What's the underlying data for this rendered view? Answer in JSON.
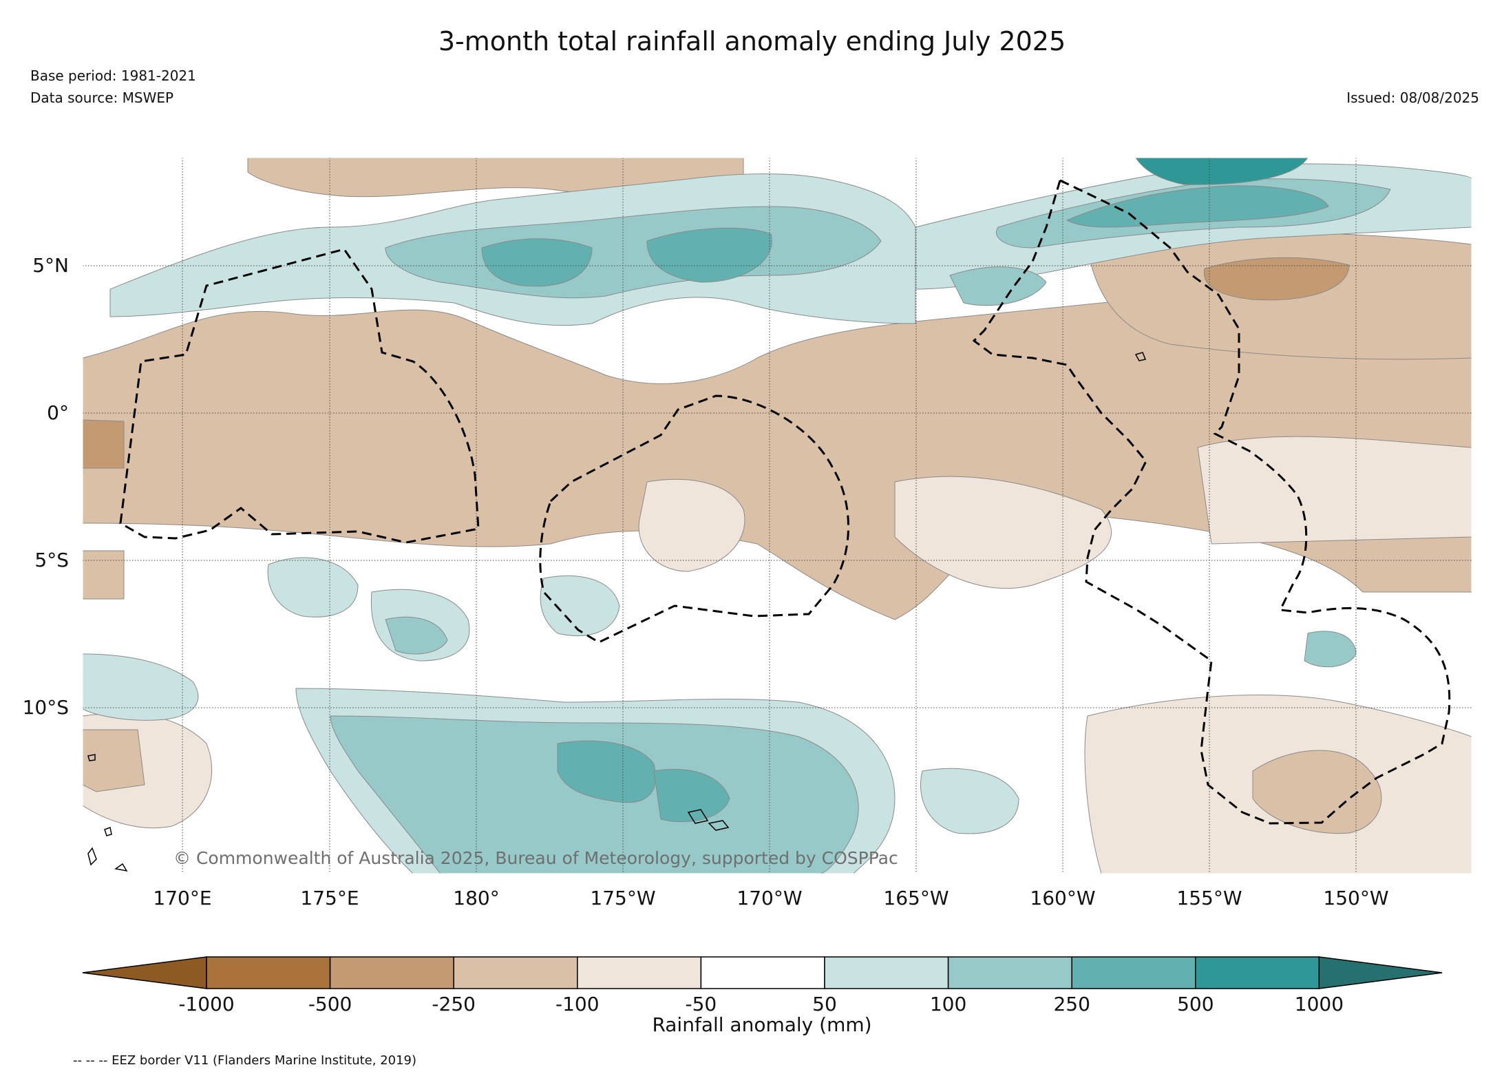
{
  "title": "3-month total rainfall anomaly ending July 2025",
  "base_period": "Base period: 1981-2021",
  "data_source": "Data source: MSWEP",
  "issued": "Issued: 08/08/2025",
  "copyright": "© Commonwealth of Australia 2025, Bureau of Meteorology, supported by COSPPac",
  "footnote": "-- -- -- EEZ border V11 (Flanders Marine Institute, 2019)",
  "map": {
    "lon_labels": [
      "170°E",
      "175°E",
      "180°",
      "175°W",
      "170°W",
      "165°W",
      "160°W",
      "155°W",
      "150°W"
    ],
    "lat_labels": [
      "5°N",
      "0°",
      "5°S",
      "10°S"
    ]
  },
  "colorbar": {
    "label": "Rainfall anomaly (mm)",
    "ticks": [
      "-1000",
      "-500",
      "-250",
      "-100",
      "-50",
      "50",
      "100",
      "250",
      "500",
      "1000"
    ],
    "colors": [
      "#8e5a24",
      "#ab733c",
      "#c39a72",
      "#dac0a6",
      "#f0e5db",
      "#ffffff",
      "#c8e3e2",
      "#97c9c9",
      "#63b0b0",
      "#2f9896",
      "#26716f"
    ]
  },
  "legend": {
    "colors": {
      "dry3": "#c39a72",
      "dry2": "#dac0a6",
      "dry1": "#f0e5db",
      "wet1": "#c8e3e2",
      "wet2": "#97c9c9",
      "wet3": "#63b0b0",
      "wet4": "#2f9896"
    }
  }
}
